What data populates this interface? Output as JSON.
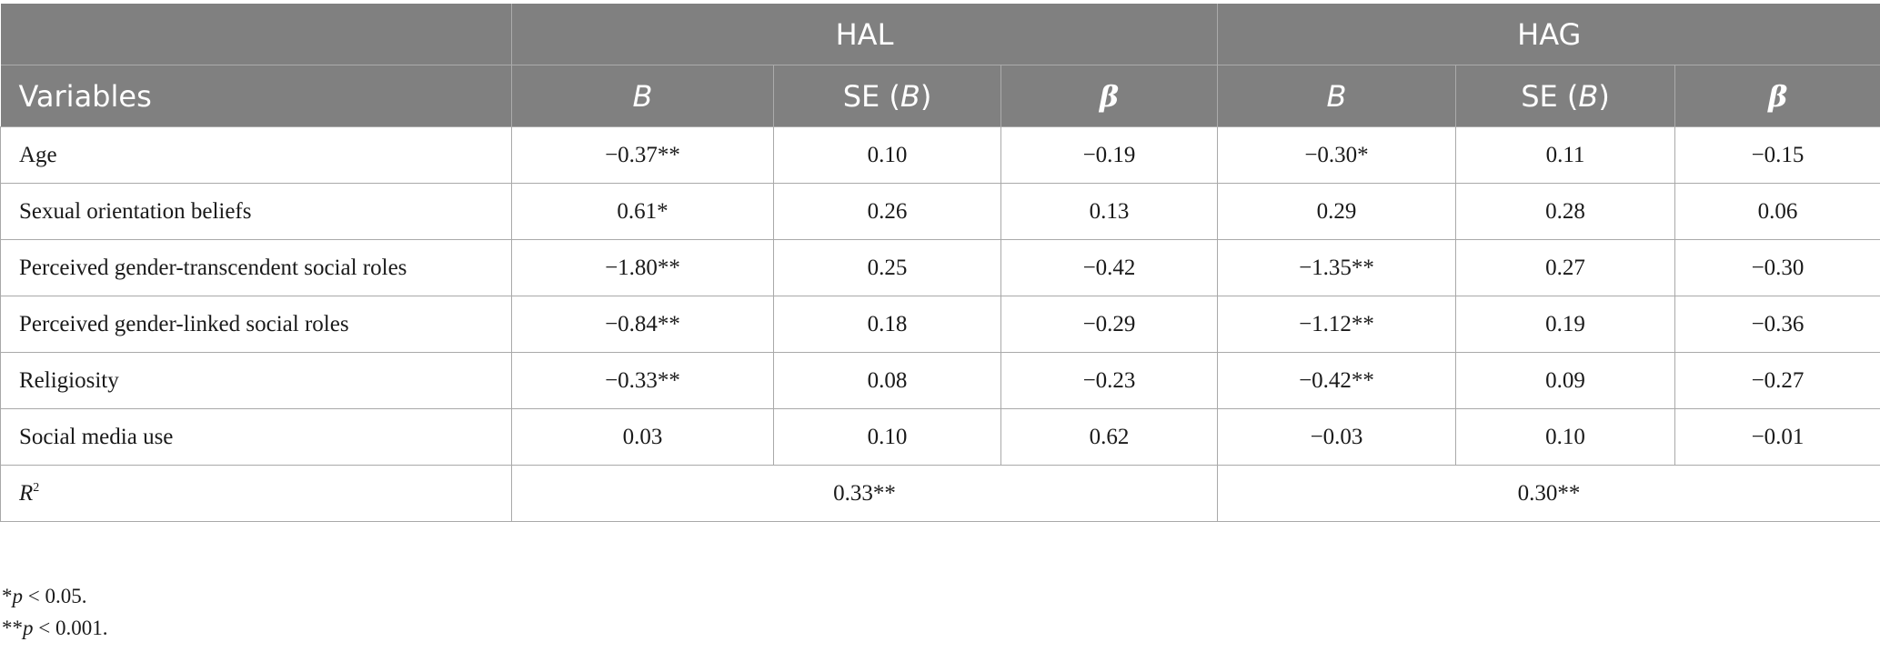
{
  "table": {
    "group_headers": [
      "HAL",
      "HAG"
    ],
    "column_headers": {
      "variables": "Variables",
      "b": "B",
      "se_prefix": "SE (",
      "se_b": "B",
      "se_suffix": ")",
      "beta": "β"
    },
    "rows": [
      {
        "label": "Age",
        "cells": [
          "−0.37**",
          "0.10",
          "−0.19",
          "−0.30*",
          "0.11",
          "−0.15"
        ]
      },
      {
        "label": "Sexual orientation beliefs",
        "cells": [
          "0.61*",
          "0.26",
          "0.13",
          "0.29",
          "0.28",
          "0.06"
        ]
      },
      {
        "label": "Perceived gender-transcendent social roles",
        "cells": [
          "−1.80**",
          "0.25",
          "−0.42",
          "−1.35**",
          "0.27",
          "−0.30"
        ]
      },
      {
        "label": "Perceived gender-linked social roles",
        "cells": [
          "−0.84**",
          "0.18",
          "−0.29",
          "−1.12**",
          "0.19",
          "−0.36"
        ]
      },
      {
        "label": "Religiosity",
        "cells": [
          "−0.33**",
          "0.08",
          "−0.23",
          "−0.42**",
          "0.09",
          "−0.27"
        ]
      },
      {
        "label": "Social media use",
        "cells": [
          "0.03",
          "0.10",
          "0.62",
          "−0.03",
          "0.10",
          "−0.01"
        ]
      }
    ],
    "r_squared": {
      "label_letter": "R",
      "label_sup": "2",
      "hal": "0.33**",
      "hag": "0.30**"
    }
  },
  "notes": [
    {
      "stars": "*",
      "p": "p",
      "text": " < 0.05."
    },
    {
      "stars": "**",
      "p": "p",
      "text": " < 0.001."
    }
  ]
}
